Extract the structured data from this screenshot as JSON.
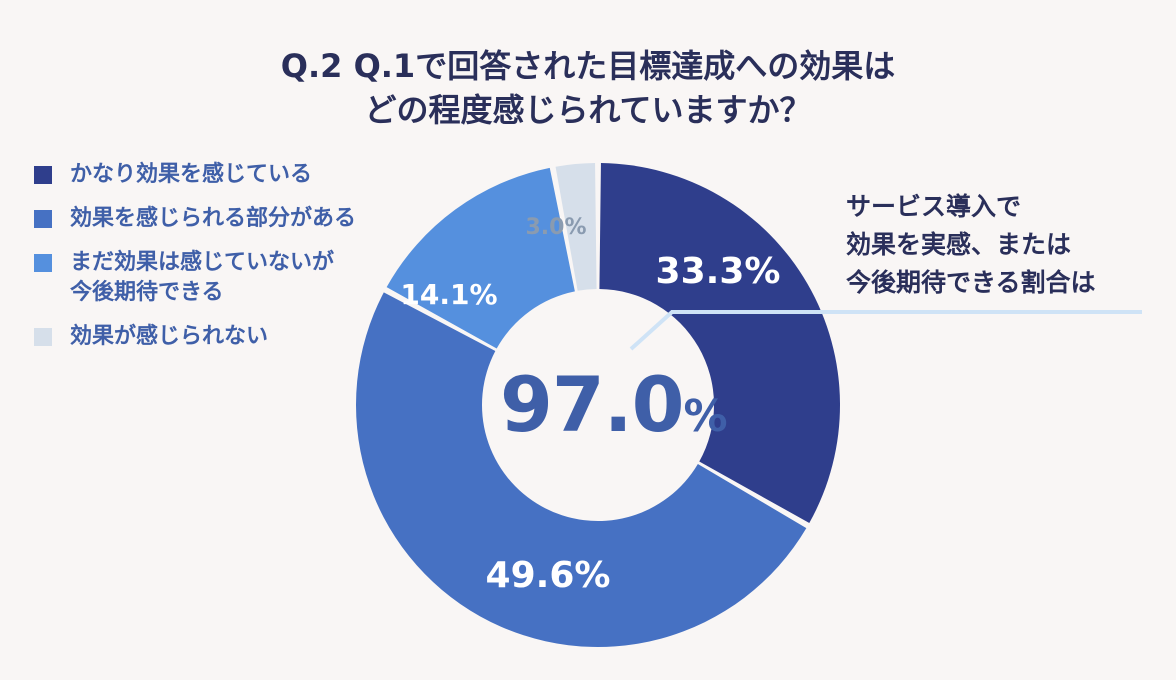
{
  "title": {
    "line1": "Q.2 Q.1で回答された目標達成への効果は",
    "line2": "どの程度感じられていますか？"
  },
  "chart_data": {
    "type": "pie",
    "categories": [
      "かなり効果を感じている",
      "効果を感じられる部分がある",
      "まだ効果は感じていないが今後期待できる",
      "効果が感じられない"
    ],
    "values": [
      33.3,
      49.6,
      14.1,
      3.0
    ],
    "data_labels": [
      "33.3%",
      "49.6%",
      "14.1%",
      "3.0%"
    ],
    "colors": [
      "#2f3e8c",
      "#4671c3",
      "#5590de",
      "#d6dfea"
    ],
    "label_colors": [
      "#ffffff",
      "#ffffff",
      "#ffffff",
      "#8a9bb0"
    ],
    "legend_placement": "top-left"
  },
  "legend": {
    "items": [
      {
        "lines": [
          "かなり効果を感じている"
        ],
        "color": "#2f3e8c"
      },
      {
        "lines": [
          "効果を感じられる部分がある"
        ],
        "color": "#4671c3"
      },
      {
        "lines": [
          "まだ効果は感じていないが",
          "今後期待できる"
        ],
        "color": "#5590de"
      },
      {
        "lines": [
          "効果が感じられない"
        ],
        "color": "#d6dfea"
      }
    ]
  },
  "callout": {
    "lines": [
      "サービス導入で",
      "効果を実感、または",
      "今後期待できる割合は"
    ]
  },
  "center": {
    "value": "97.0",
    "unit": "%"
  }
}
